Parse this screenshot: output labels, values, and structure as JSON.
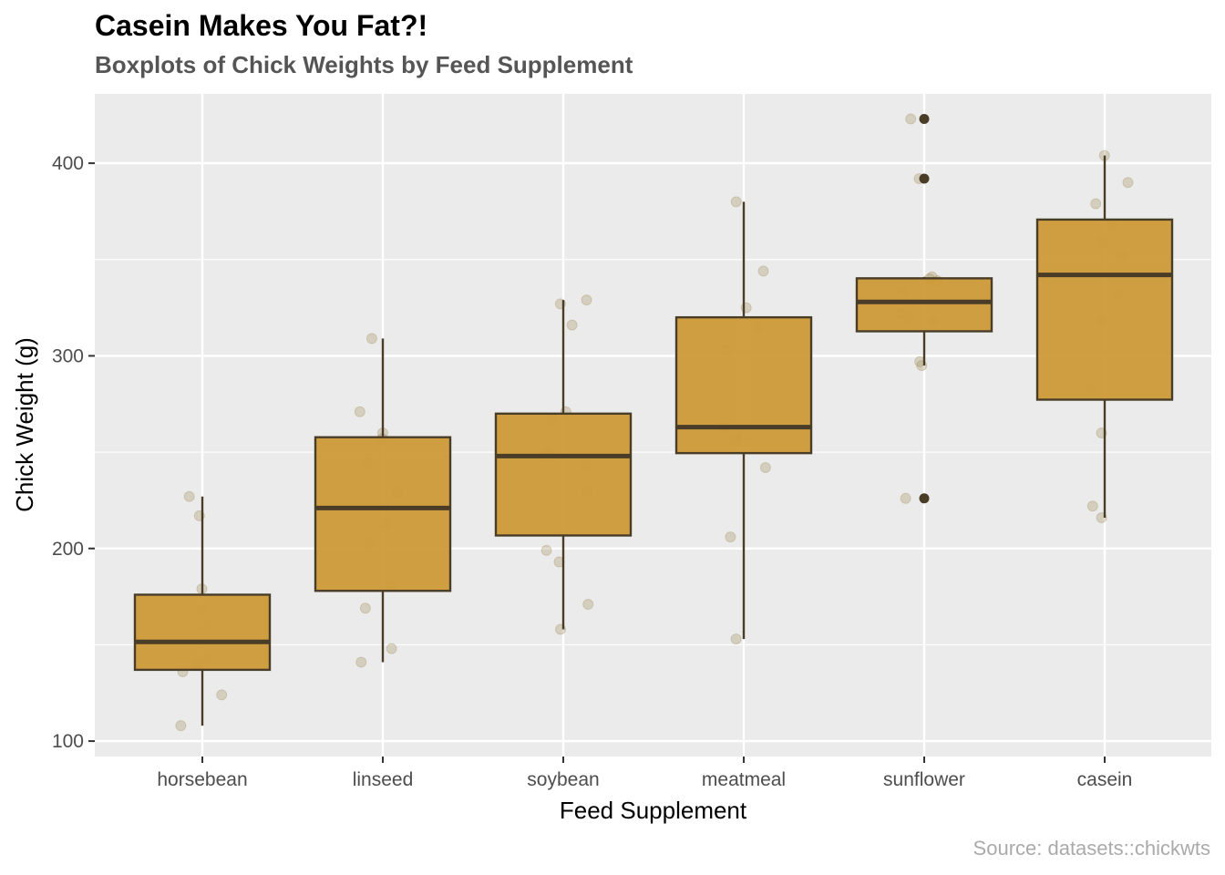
{
  "chart_data": {
    "type": "boxplot",
    "title": "Casein Makes You Fat?!",
    "subtitle": "Boxplots of Chick Weights by Feed Supplement",
    "caption": "Source: datasets::chickwts",
    "xlabel": "Feed Supplement",
    "ylabel": "Chick Weight (g)",
    "ylim": [
      92,
      436
    ],
    "yticks": [
      100,
      200,
      300,
      400
    ],
    "grid": true,
    "colors": {
      "panel": "#ebebeb",
      "grid": "#ffffff",
      "box_fill": "#cd9a38",
      "box_line": "#4a3d28",
      "point": "#a08a5a",
      "outlier": "#4a3d28"
    },
    "categories": [
      "horsebean",
      "linseed",
      "soybean",
      "meatmeal",
      "sunflower",
      "casein"
    ],
    "boxes": [
      {
        "name": "horsebean",
        "min": 108,
        "q1": 137,
        "median": 151.5,
        "q3": 176,
        "max": 227,
        "outliers": []
      },
      {
        "name": "linseed",
        "min": 141,
        "q1": 178,
        "median": 221,
        "q3": 257.75,
        "max": 309,
        "outliers": []
      },
      {
        "name": "soybean",
        "min": 158,
        "q1": 206.75,
        "median": 248,
        "q3": 270,
        "max": 329,
        "outliers": []
      },
      {
        "name": "meatmeal",
        "min": 153,
        "q1": 249.5,
        "median": 263,
        "q3": 320,
        "max": 380,
        "outliers": []
      },
      {
        "name": "sunflower",
        "min": 295,
        "q1": 312.75,
        "median": 328,
        "q3": 340.25,
        "max": 341,
        "outliers": [
          423,
          392,
          226
        ]
      },
      {
        "name": "casein",
        "min": 216,
        "q1": 277.25,
        "median": 342,
        "q3": 370.75,
        "max": 404,
        "outliers": []
      }
    ],
    "points": [
      {
        "category": "horsebean",
        "values": [
          179,
          160,
          136,
          227,
          217,
          168,
          108,
          124,
          143,
          140
        ]
      },
      {
        "category": "linseed",
        "values": [
          309,
          229,
          181,
          141,
          260,
          203,
          148,
          169,
          213,
          257,
          244,
          271
        ]
      },
      {
        "category": "soybean",
        "values": [
          243,
          230,
          248,
          327,
          329,
          250,
          193,
          271,
          316,
          267,
          199,
          171,
          158,
          248
        ]
      },
      {
        "category": "meatmeal",
        "values": [
          325,
          257,
          303,
          315,
          380,
          153,
          263,
          242,
          206,
          344,
          258
        ]
      },
      {
        "category": "sunflower",
        "values": [
          423,
          340,
          392,
          339,
          341,
          226,
          320,
          295,
          334,
          322,
          297,
          318
        ]
      },
      {
        "category": "casein",
        "values": [
          368,
          390,
          379,
          260,
          404,
          318,
          352,
          359,
          216,
          222,
          283,
          332
        ]
      }
    ]
  }
}
